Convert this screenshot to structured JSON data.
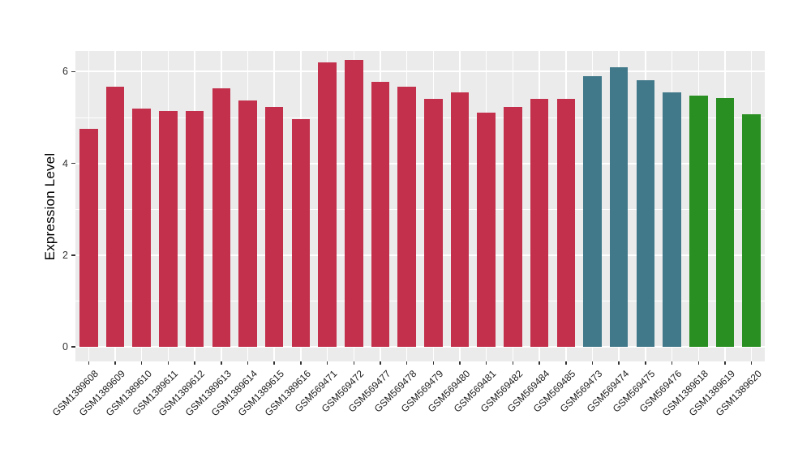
{
  "figure": {
    "background": "#FFFFFF",
    "panel_background": "#EBEBEB",
    "grid_color": "#FFFFFF",
    "tick_color": "#333333",
    "axis_text_color": "#333333",
    "axis_title_color": "#000000"
  },
  "chart_data": {
    "type": "bar",
    "title": "",
    "xlabel": "",
    "ylabel": "Expression Level",
    "ylim": [
      0,
      6.45
    ],
    "yticks": [
      0,
      2,
      4,
      6
    ],
    "yticks_minor": [
      1,
      3,
      5
    ],
    "grid": true,
    "legend": false,
    "group_colors": {
      "crimson": "#C3304C",
      "teal": "#42798A",
      "green": "#2A8F22"
    },
    "bars": [
      {
        "label": "GSM1389608",
        "value": 4.75,
        "group": "crimson"
      },
      {
        "label": "GSM1389609",
        "value": 5.67,
        "group": "crimson"
      },
      {
        "label": "GSM1389610",
        "value": 5.2,
        "group": "crimson"
      },
      {
        "label": "GSM1389611",
        "value": 5.14,
        "group": "crimson"
      },
      {
        "label": "GSM1389612",
        "value": 5.15,
        "group": "crimson"
      },
      {
        "label": "GSM1389613",
        "value": 5.63,
        "group": "crimson"
      },
      {
        "label": "GSM1389614",
        "value": 5.38,
        "group": "crimson"
      },
      {
        "label": "GSM1389615",
        "value": 5.23,
        "group": "crimson"
      },
      {
        "label": "GSM1389616",
        "value": 4.97,
        "group": "crimson"
      },
      {
        "label": "GSM569471",
        "value": 6.21,
        "group": "crimson"
      },
      {
        "label": "GSM569472",
        "value": 6.25,
        "group": "crimson"
      },
      {
        "label": "GSM569477",
        "value": 5.77,
        "group": "crimson"
      },
      {
        "label": "GSM569478",
        "value": 5.68,
        "group": "crimson"
      },
      {
        "label": "GSM569479",
        "value": 5.41,
        "group": "crimson"
      },
      {
        "label": "GSM569480",
        "value": 5.55,
        "group": "crimson"
      },
      {
        "label": "GSM569481",
        "value": 5.1,
        "group": "crimson"
      },
      {
        "label": "GSM569482",
        "value": 5.23,
        "group": "crimson"
      },
      {
        "label": "GSM569484",
        "value": 5.41,
        "group": "crimson"
      },
      {
        "label": "GSM569485",
        "value": 5.41,
        "group": "crimson"
      },
      {
        "label": "GSM569473",
        "value": 5.9,
        "group": "teal"
      },
      {
        "label": "GSM569474",
        "value": 6.1,
        "group": "teal"
      },
      {
        "label": "GSM569475",
        "value": 5.82,
        "group": "teal"
      },
      {
        "label": "GSM569476",
        "value": 5.55,
        "group": "teal"
      },
      {
        "label": "GSM1389618",
        "value": 5.48,
        "group": "green"
      },
      {
        "label": "GSM1389619",
        "value": 5.42,
        "group": "green"
      },
      {
        "label": "GSM1389620",
        "value": 5.08,
        "group": "green"
      }
    ]
  }
}
